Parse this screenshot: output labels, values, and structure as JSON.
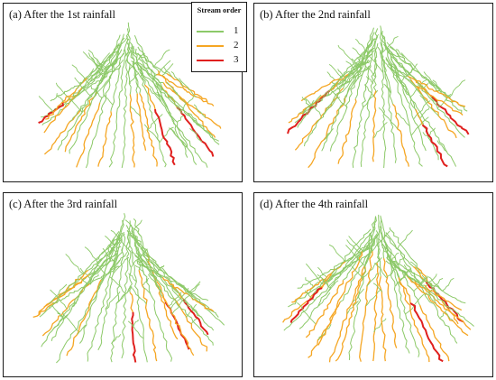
{
  "legend": {
    "title": "Stream order",
    "items": [
      {
        "label": "1",
        "color": "#8cc968"
      },
      {
        "label": "2",
        "color": "#f5a623"
      },
      {
        "label": "3",
        "color": "#e0201e"
      }
    ]
  },
  "panels": [
    {
      "title": "(a) After the 1st rainfall"
    },
    {
      "title": "(b) After the 2nd rainfall"
    },
    {
      "title": "(c) After the 3rd rainfall"
    },
    {
      "title": "(d) After the 4th rainfall"
    }
  ]
}
